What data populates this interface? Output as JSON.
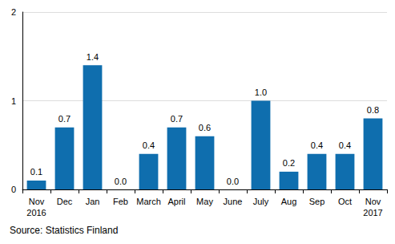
{
  "chart_data": {
    "type": "bar",
    "categories": [
      "Nov\n2016",
      "Dec",
      "Jan",
      "Feb",
      "March",
      "April",
      "May",
      "June",
      "July",
      "Aug",
      "Sep",
      "Oct",
      "Nov\n2017"
    ],
    "values": [
      0.1,
      0.7,
      1.4,
      0.0,
      0.4,
      0.7,
      0.6,
      0.0,
      1.0,
      0.2,
      0.4,
      0.4,
      0.8
    ],
    "value_labels": [
      "0.1",
      "0.7",
      "1.4",
      "0.0",
      "0.4",
      "0.7",
      "0.6",
      "0.0",
      "1.0",
      "0.2",
      "0.4",
      "0.4",
      "0.8"
    ],
    "color": "#0f6eae",
    "ylim": [
      0,
      2
    ],
    "yticks": [
      0,
      1,
      2
    ],
    "grid": true,
    "data_labels": true,
    "annotations": [
      "Source: Statistics Finland"
    ]
  }
}
